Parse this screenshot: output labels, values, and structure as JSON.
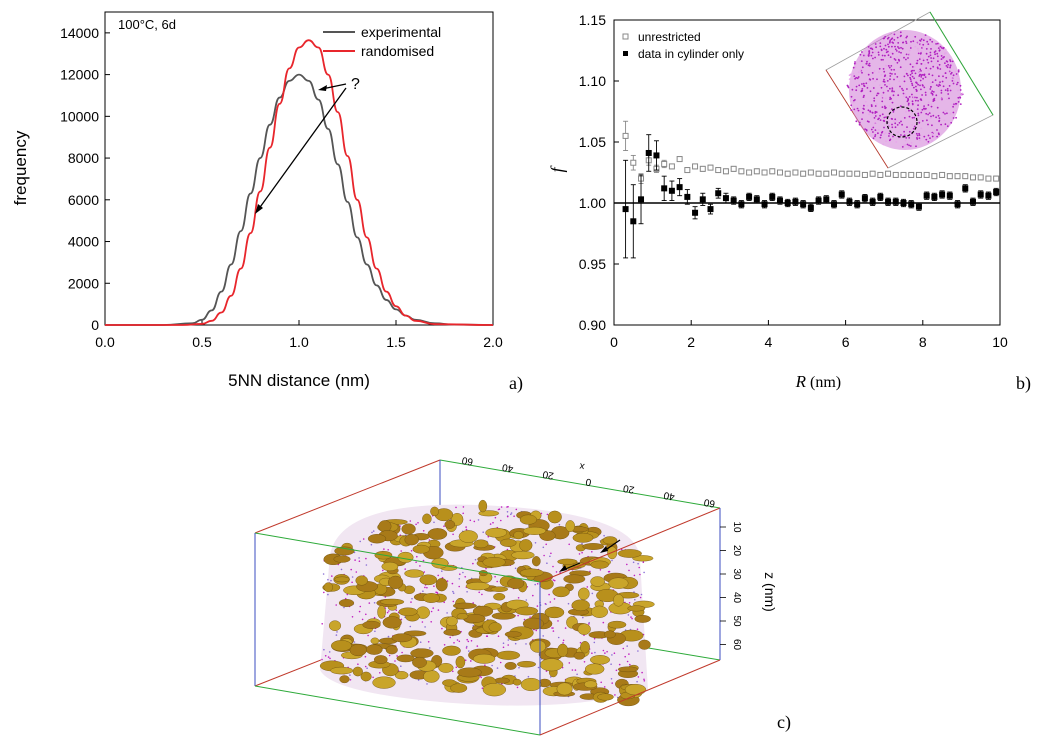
{
  "panel_a": {
    "panel_label": "a)",
    "chart_data": {
      "type": "line",
      "annotation": "100°C, 6d",
      "question_mark": "?",
      "xlabel": "5NN distance (nm)",
      "ylabel": "frequency",
      "xlim": [
        0,
        2.0
      ],
      "ylim": [
        0,
        15000
      ],
      "xticks": [
        "0.0",
        "0.5",
        "1.0",
        "1.5",
        "2.0"
      ],
      "yticks": [
        "0",
        "2000",
        "4000",
        "6000",
        "8000",
        "10000",
        "12000",
        "14000"
      ],
      "legend_position": "top-right",
      "series": [
        {
          "name": "experimental",
          "color": "#555555",
          "x": [
            0,
            0.3,
            0.45,
            0.5,
            0.55,
            0.6,
            0.65,
            0.7,
            0.75,
            0.8,
            0.85,
            0.9,
            0.95,
            1.0,
            1.05,
            1.1,
            1.15,
            1.2,
            1.25,
            1.3,
            1.35,
            1.4,
            1.45,
            1.5,
            1.55,
            1.6,
            1.7,
            1.8,
            2.0
          ],
          "y": [
            0,
            0,
            80,
            250,
            700,
            1600,
            2900,
            4500,
            6300,
            8000,
            9600,
            10900,
            11700,
            12000,
            11700,
            10800,
            9400,
            7700,
            5900,
            4200,
            2900,
            1900,
            1200,
            750,
            450,
            250,
            80,
            20,
            0
          ]
        },
        {
          "name": "randomised",
          "color": "#e8262c",
          "x": [
            0,
            0.4,
            0.5,
            0.55,
            0.6,
            0.65,
            0.7,
            0.75,
            0.8,
            0.85,
            0.9,
            0.95,
            1.0,
            1.05,
            1.1,
            1.15,
            1.2,
            1.25,
            1.3,
            1.35,
            1.4,
            1.45,
            1.5,
            1.55,
            1.6,
            1.7,
            2.0
          ],
          "y": [
            0,
            0,
            50,
            200,
            600,
            1400,
            2700,
            4400,
            6400,
            8500,
            10600,
            12300,
            13300,
            13650,
            13300,
            12000,
            10200,
            8100,
            6000,
            4200,
            2700,
            1600,
            900,
            450,
            200,
            40,
            0
          ]
        }
      ]
    }
  },
  "panel_b": {
    "panel_label": "b)",
    "chart_data": {
      "type": "scatter",
      "xlabel": "R",
      "xlabel_unit": "(nm)",
      "ylabel": "f",
      "xlim": [
        0,
        10
      ],
      "ylim": [
        0.9,
        1.15
      ],
      "xticks": [
        "0",
        "2",
        "4",
        "6",
        "8",
        "10"
      ],
      "yticks": [
        "0.90",
        "0.95",
        "1.00",
        "1.05",
        "1.10",
        "1.15"
      ],
      "reference_line": 1.0,
      "legend_position": "top-left",
      "series": [
        {
          "name": "unrestricted",
          "marker": "open-square",
          "color": "#888888",
          "x": [
            0.3,
            0.5,
            0.7,
            0.9,
            1.1,
            1.3,
            1.5,
            1.7,
            1.9,
            2.1,
            2.3,
            2.5,
            2.7,
            2.9,
            3.1,
            3.3,
            3.5,
            3.7,
            3.9,
            4.1,
            4.3,
            4.5,
            4.7,
            4.9,
            5.1,
            5.3,
            5.5,
            5.7,
            5.9,
            6.1,
            6.3,
            6.5,
            6.7,
            6.9,
            7.1,
            7.3,
            7.5,
            7.7,
            7.9,
            8.1,
            8.3,
            8.5,
            8.7,
            8.9,
            9.1,
            9.3,
            9.5,
            9.7,
            9.9
          ],
          "y": [
            1.055,
            1.033,
            1.02,
            1.035,
            1.028,
            1.032,
            1.03,
            1.036,
            1.027,
            1.03,
            1.028,
            1.029,
            1.027,
            1.026,
            1.028,
            1.026,
            1.025,
            1.026,
            1.025,
            1.026,
            1.025,
            1.024,
            1.025,
            1.024,
            1.025,
            1.024,
            1.024,
            1.025,
            1.024,
            1.024,
            1.024,
            1.023,
            1.024,
            1.023,
            1.024,
            1.023,
            1.023,
            1.023,
            1.023,
            1.023,
            1.022,
            1.023,
            1.022,
            1.022,
            1.022,
            1.021,
            1.021,
            1.02,
            1.02
          ],
          "err": [
            0.012,
            0.006,
            0.004,
            0.004,
            0.003,
            0.003,
            0.002,
            0.002,
            0.002,
            0.002,
            0.002,
            0.002,
            0.002,
            0.002,
            0.002,
            0.002,
            0.002,
            0.002,
            0.002,
            0.002,
            0.002,
            0.002,
            0.002,
            0.002,
            0.002,
            0.002,
            0.002,
            0.002,
            0.002,
            0.002,
            0.002,
            0.002,
            0.002,
            0.002,
            0.002,
            0.002,
            0.002,
            0.002,
            0.002,
            0.002,
            0.002,
            0.002,
            0.002,
            0.002,
            0.002,
            0.002,
            0.002,
            0.002,
            0.002
          ]
        },
        {
          "name": "data in cylinder only",
          "marker": "filled-square",
          "color": "#000000",
          "x": [
            0.3,
            0.5,
            0.7,
            0.9,
            1.1,
            1.3,
            1.5,
            1.7,
            1.9,
            2.1,
            2.3,
            2.5,
            2.7,
            2.9,
            3.1,
            3.3,
            3.5,
            3.7,
            3.9,
            4.1,
            4.3,
            4.5,
            4.7,
            4.9,
            5.1,
            5.3,
            5.5,
            5.7,
            5.9,
            6.1,
            6.3,
            6.5,
            6.7,
            6.9,
            7.1,
            7.3,
            7.5,
            7.7,
            7.9,
            8.1,
            8.3,
            8.5,
            8.7,
            8.9,
            9.1,
            9.3,
            9.5,
            9.7,
            9.9
          ],
          "y": [
            0.995,
            0.985,
            1.003,
            1.041,
            1.039,
            1.012,
            1.01,
            1.013,
            1.005,
            0.992,
            1.003,
            0.995,
            1.008,
            1.004,
            1.002,
            0.999,
            1.005,
            1.003,
            0.999,
            1.005,
            1.002,
            1.0,
            1.001,
            0.999,
            0.996,
            1.002,
            1.003,
            0.999,
            1.007,
            1.001,
            0.999,
            1.004,
            1.001,
            1.005,
            1.001,
            1.001,
            1.0,
            0.999,
            0.997,
            1.006,
            1.005,
            1.007,
            1.006,
            0.999,
            1.012,
            1.001,
            1.007,
            1.006,
            1.009
          ],
          "err": [
            0.04,
            0.03,
            0.02,
            0.015,
            0.012,
            0.01,
            0.008,
            0.007,
            0.006,
            0.005,
            0.005,
            0.004,
            0.004,
            0.004,
            0.003,
            0.003,
            0.003,
            0.003,
            0.003,
            0.003,
            0.003,
            0.003,
            0.003,
            0.003,
            0.003,
            0.003,
            0.003,
            0.003,
            0.003,
            0.003,
            0.003,
            0.003,
            0.003,
            0.003,
            0.003,
            0.003,
            0.003,
            0.003,
            0.003,
            0.003,
            0.003,
            0.003,
            0.003,
            0.003,
            0.003,
            0.003,
            0.003,
            0.003,
            0.003
          ]
        }
      ]
    }
  },
  "panel_c": {
    "panel_label": "c)",
    "axis_label": "z (nm)",
    "z_ticks": [
      "10",
      "20",
      "30",
      "40",
      "50",
      "60"
    ],
    "top_axis_ticks": [
      "60",
      "40",
      "20",
      "0",
      "20",
      "40",
      "60"
    ],
    "top_axis_letter": "x",
    "colors": {
      "box_green": "#2eaa3a",
      "box_red": "#c0392b",
      "box_blue": "#3b4cc0",
      "cluster": "#b8901c",
      "atoms": "#c020c0"
    }
  }
}
